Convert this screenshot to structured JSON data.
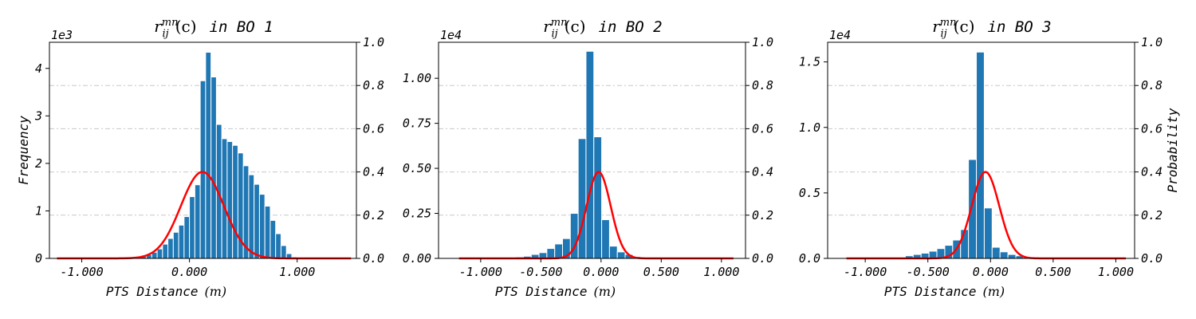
{
  "chart_data": [
    {
      "type": "bar",
      "title_math": "r_{ij}^{mn}(c)",
      "title_text": "in BO 1",
      "xlabel": "PTS Distance",
      "xlabel_unit": "(m)",
      "ylabel_left": "Frequency",
      "ylabel_right": "",
      "left_multiplier": "1e3",
      "xlim": [
        -1.3,
        1.55
      ],
      "xticks": [
        -1.0,
        0.0,
        1.0
      ],
      "xtick_labels": [
        "-1.000",
        "0.000",
        "1.000"
      ],
      "ylim_left": [
        0,
        4.55
      ],
      "yticks_left": [
        0,
        1,
        2,
        3,
        4
      ],
      "ytick_labels_left": [
        "0",
        "1",
        "2",
        "3",
        "4"
      ],
      "ylim_right": [
        0,
        1.0
      ],
      "yticks_right": [
        0,
        0.2,
        0.4,
        0.6,
        0.8,
        1.0
      ],
      "ytick_labels_right": [
        "0.0",
        "0.2",
        "0.4",
        "0.6",
        "0.8",
        "1.0"
      ],
      "grid": true,
      "bin_start": -0.55,
      "bin_width": 0.05,
      "frequencies": [
        0.01,
        0.02,
        0.04,
        0.08,
        0.13,
        0.2,
        0.3,
        0.42,
        0.55,
        0.7,
        0.88,
        1.3,
        1.55,
        3.74,
        4.34,
        3.82,
        2.82,
        2.52,
        2.46,
        2.38,
        2.22,
        1.95,
        1.76,
        1.56,
        1.35,
        1.1,
        0.8,
        0.52,
        0.27,
        0.1,
        0.03,
        0.01
      ],
      "gaussian": {
        "mean": 0.12,
        "sigma": 0.2,
        "peak": 0.4,
        "x_range": [
          -1.23,
          1.5
        ]
      }
    },
    {
      "type": "bar",
      "title_math": "r_{ij}^{mn}(c)",
      "title_text": "in BO 2",
      "xlabel": "PTS Distance",
      "xlabel_unit": "(m)",
      "ylabel_left": "",
      "ylabel_right": "",
      "left_multiplier": "1e4",
      "xlim": [
        -1.35,
        1.2
      ],
      "xticks": [
        -1.0,
        -0.5,
        0.0,
        0.5,
        1.0
      ],
      "xtick_labels": [
        "-1.000",
        "-0.500",
        "0.000",
        "0.500",
        "1.000"
      ],
      "ylim_left": [
        0,
        1.2
      ],
      "yticks_left": [
        0,
        0.25,
        0.5,
        0.75,
        1.0
      ],
      "ytick_labels_left": [
        "0.00",
        "0.25",
        "0.50",
        "0.75",
        "1.00"
      ],
      "ylim_right": [
        0,
        1.0
      ],
      "yticks_right": [
        0,
        0.2,
        0.4,
        0.6,
        0.8,
        1.0
      ],
      "ytick_labels_right": [
        "0.0",
        "0.2",
        "0.4",
        "0.6",
        "0.8",
        "1.0"
      ],
      "grid": true,
      "bin_start": -0.775,
      "bin_width": 0.065,
      "frequencies": [
        0.003,
        0.008,
        0.012,
        0.022,
        0.032,
        0.055,
        0.08,
        0.11,
        0.25,
        0.665,
        1.15,
        0.675,
        0.215,
        0.068,
        0.036,
        0.022,
        0.01,
        0.005
      ],
      "gaussian": {
        "mean": -0.02,
        "sigma": 0.1,
        "peak": 0.4,
        "x_range": [
          -1.18,
          1.1
        ]
      }
    },
    {
      "type": "bar",
      "title_math": "r_{ij}^{mn}(c)",
      "title_text": "in BO 3",
      "xlabel": "PTS Distance",
      "xlabel_unit": "(m)",
      "ylabel_left": "",
      "ylabel_right": "Probability",
      "left_multiplier": "1e4",
      "xlim": [
        -1.3,
        1.15
      ],
      "xticks": [
        -1.0,
        -0.5,
        0.0,
        0.5,
        1.0
      ],
      "xtick_labels": [
        "-1.000",
        "-0.500",
        "0.000",
        "0.500",
        "1.000"
      ],
      "ylim_left": [
        0,
        1.65
      ],
      "yticks_left": [
        0,
        0.5,
        1.0,
        1.5
      ],
      "ytick_labels_left": [
        "0.0",
        "0.5",
        "1.0",
        "1.5"
      ],
      "ylim_right": [
        0,
        1.0
      ],
      "yticks_right": [
        0,
        0.2,
        0.4,
        0.6,
        0.8,
        1.0
      ],
      "ytick_labels_right": [
        "0.0",
        "0.2",
        "0.4",
        "0.6",
        "0.8",
        "1.0"
      ],
      "grid": true,
      "bin_start": -0.68,
      "bin_width": 0.063,
      "frequencies": [
        0.02,
        0.03,
        0.04,
        0.055,
        0.075,
        0.1,
        0.14,
        0.22,
        0.755,
        1.575,
        0.385,
        0.085,
        0.05,
        0.03,
        0.02,
        0.01
      ],
      "gaussian": {
        "mean": -0.04,
        "sigma": 0.11,
        "peak": 0.4,
        "x_range": [
          -1.15,
          1.08
        ]
      }
    }
  ]
}
